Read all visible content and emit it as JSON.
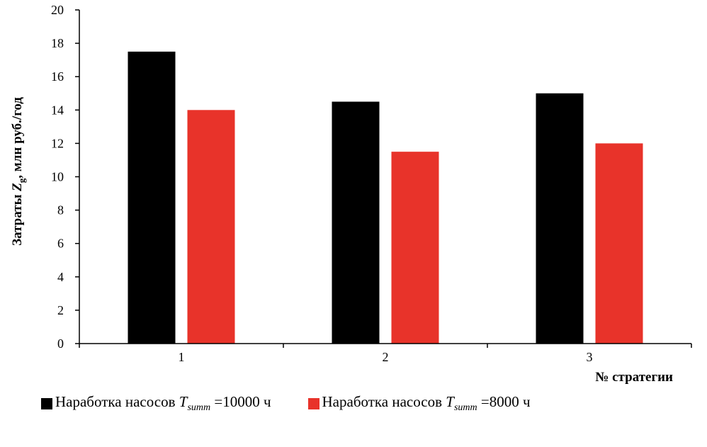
{
  "chart_data": {
    "type": "bar",
    "categories": [
      "1",
      "2",
      "3"
    ],
    "series": [
      {
        "name": "Наработка насосов Tsumm =10000 ч",
        "values": [
          17.5,
          14.5,
          15.0
        ],
        "color": "#000000"
      },
      {
        "name": "Наработка насосов Tsumm =8000 ч",
        "values": [
          14.0,
          11.5,
          12.0
        ],
        "color": "#e8332a"
      }
    ],
    "yticks": [
      "0",
      "2",
      "4",
      "6",
      "8",
      "10",
      "12",
      "14",
      "16",
      "18",
      "20"
    ],
    "ylim": [
      0,
      20
    ],
    "ylabel": {
      "prefix": "Затраты ",
      "var": "Z",
      "sub": "g",
      "suffix": ", млн руб./год"
    },
    "xlabel": "№ стратегии",
    "grid": false,
    "legend_position": "bottom"
  },
  "legend": [
    {
      "prefix": "Наработка насосов ",
      "var": "T",
      "sub": "summ",
      "suffix": " =10000 ч",
      "color": "#000000"
    },
    {
      "prefix": "Наработка насосов ",
      "var": "T",
      "sub": "summ",
      "suffix": " =8000 ч",
      "color": "#e8332a"
    }
  ]
}
